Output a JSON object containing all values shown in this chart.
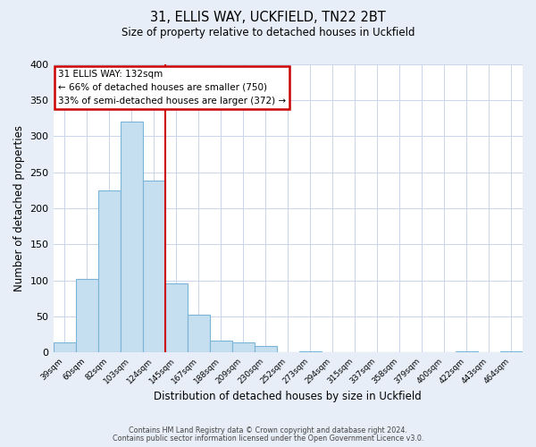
{
  "title1": "31, ELLIS WAY, UCKFIELD, TN22 2BT",
  "title2": "Size of property relative to detached houses in Uckfield",
  "xlabel": "Distribution of detached houses by size in Uckfield",
  "ylabel": "Number of detached properties",
  "bar_labels": [
    "39sqm",
    "60sqm",
    "82sqm",
    "103sqm",
    "124sqm",
    "145sqm",
    "167sqm",
    "188sqm",
    "209sqm",
    "230sqm",
    "252sqm",
    "273sqm",
    "294sqm",
    "315sqm",
    "337sqm",
    "358sqm",
    "379sqm",
    "400sqm",
    "422sqm",
    "443sqm",
    "464sqm"
  ],
  "bar_values": [
    14,
    102,
    225,
    320,
    238,
    96,
    53,
    17,
    14,
    9,
    0,
    2,
    1,
    0,
    0,
    0,
    0,
    0,
    2,
    0,
    2
  ],
  "bar_color": "#c5dff0",
  "bar_edge_color": "#7ab5d8",
  "vline_x": 4.5,
  "vline_color": "#cc0000",
  "annotation_title": "31 ELLIS WAY: 132sqm",
  "annotation_line1": "← 66% of detached houses are smaller (750)",
  "annotation_line2": "33% of semi-detached houses are larger (372) →",
  "annotation_box_edge": "#cc0000",
  "ylim": [
    0,
    400
  ],
  "yticks": [
    0,
    50,
    100,
    150,
    200,
    250,
    300,
    350,
    400
  ],
  "footer1": "Contains HM Land Registry data © Crown copyright and database right 2024.",
  "footer2": "Contains public sector information licensed under the Open Government Licence v3.0.",
  "bg_color": "#e8eef8",
  "plot_bg_color": "#ffffff",
  "grid_color": "#c8d4e8"
}
